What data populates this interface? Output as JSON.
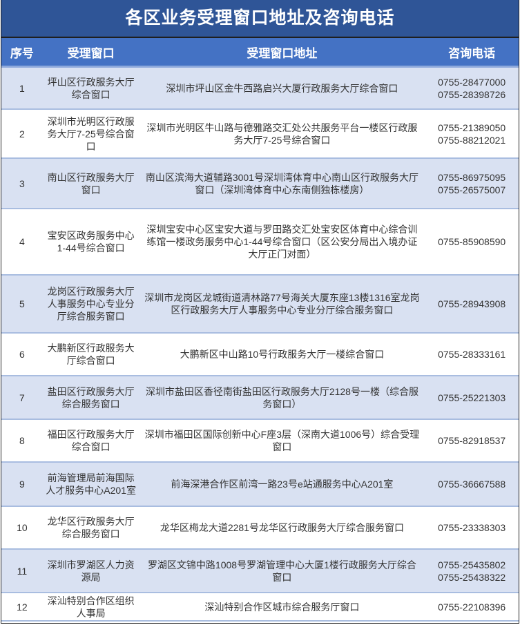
{
  "title": "各区业务受理窗口地址及咨询电话",
  "headers": [
    "序号",
    "受理窗口",
    "受理窗口地址",
    "咨询电话"
  ],
  "colors": {
    "title_bg": "#2f5597",
    "header_bg": "#4472c4",
    "odd_row_bg": "#d9e1f2",
    "even_row_bg": "#ffffff"
  },
  "rows": [
    {
      "no": "1",
      "window": "坪山区行政服务大厅综合窗口",
      "address": "深圳市坪山区金牛西路启兴大厦行政服务大厅综合窗口",
      "phones": [
        "0755-28477000",
        "0755-28398726"
      ]
    },
    {
      "no": "2",
      "window": "深圳市光明区行政服务大厅7-25号综合窗口",
      "address": "深圳市光明区牛山路与德雅路交汇处公共服务平台一楼区行政服务大厅7-25号综合窗口",
      "phones": [
        "0755-21389050",
        "0755-88212021"
      ]
    },
    {
      "no": "3",
      "window": "南山区行政服务大厅窗口",
      "address": "南山区滨海大道辅路3001号深圳湾体育中心南山区行政服务大厅窗口（深圳湾体育中心东南侧独栋楼房）",
      "phones": [
        "0755-86975095",
        "0755-26575007"
      ]
    },
    {
      "no": "4",
      "window": "宝安区政务服务中心1-44号综合窗口",
      "address": "深圳宝安中心区宝安大道与罗田路交汇处宝安区体育中心综合训练馆一楼政务服务中心1-44号综合窗口（区公安分局出入境办证大厅正门对面）",
      "phones": [
        "0755-85908590"
      ]
    },
    {
      "no": "5",
      "window": "龙岗区行政服务大厅人事服务中心专业分厅综合服务窗口",
      "address": "深圳市龙岗区龙城街道清林路77号海关大厦东座13楼1316室龙岗区行政服务大厅人事服务中心专业分厅综合服务窗口",
      "phones": [
        "0755-28943908"
      ]
    },
    {
      "no": "6",
      "window": "大鹏新区行政服务大厅综合窗口",
      "address": "大鹏新区中山路10号行政服务大厅一楼综合窗口",
      "phones": [
        "0755-28333161"
      ]
    },
    {
      "no": "7",
      "window": "盐田区行政服务大厅综合服务窗口",
      "address": "深圳市盐田区香径南街盐田区行政服务大厅2128号一楼（综合服务窗口）",
      "phones": [
        "0755-25221303"
      ]
    },
    {
      "no": "8",
      "window": "福田区行政服务大厅综合窗口",
      "address": "深圳市福田区国际创新中心F座3层（深南大道1006号）综合受理窗口",
      "phones": [
        "0755-82918537"
      ]
    },
    {
      "no": "9",
      "window": "前海管理局前海国际人才服务中心A201室",
      "address": "前海深港合作区前湾一路23号e站通服务中心A201室",
      "phones": [
        "0755-36667588"
      ]
    },
    {
      "no": "10",
      "window": "龙华区行政服务大厅综合服务窗口",
      "address": "龙华区梅龙大道2281号龙华区行政服务大厅综合服务窗口",
      "phones": [
        "0755-23338303"
      ]
    },
    {
      "no": "11",
      "window": "深圳市罗湖区人力资源局",
      "address": "罗湖区文锦中路1008号罗湖管理中心大厦1楼行政服务大厅综合窗口",
      "phones": [
        "0755-25435802",
        "0755-25438322"
      ]
    },
    {
      "no": "12",
      "window": "深汕特别合作区组织人事局",
      "address": "深汕特别合作区城市综合服务厅窗口",
      "phones": [
        "0755-22108396"
      ]
    }
  ]
}
